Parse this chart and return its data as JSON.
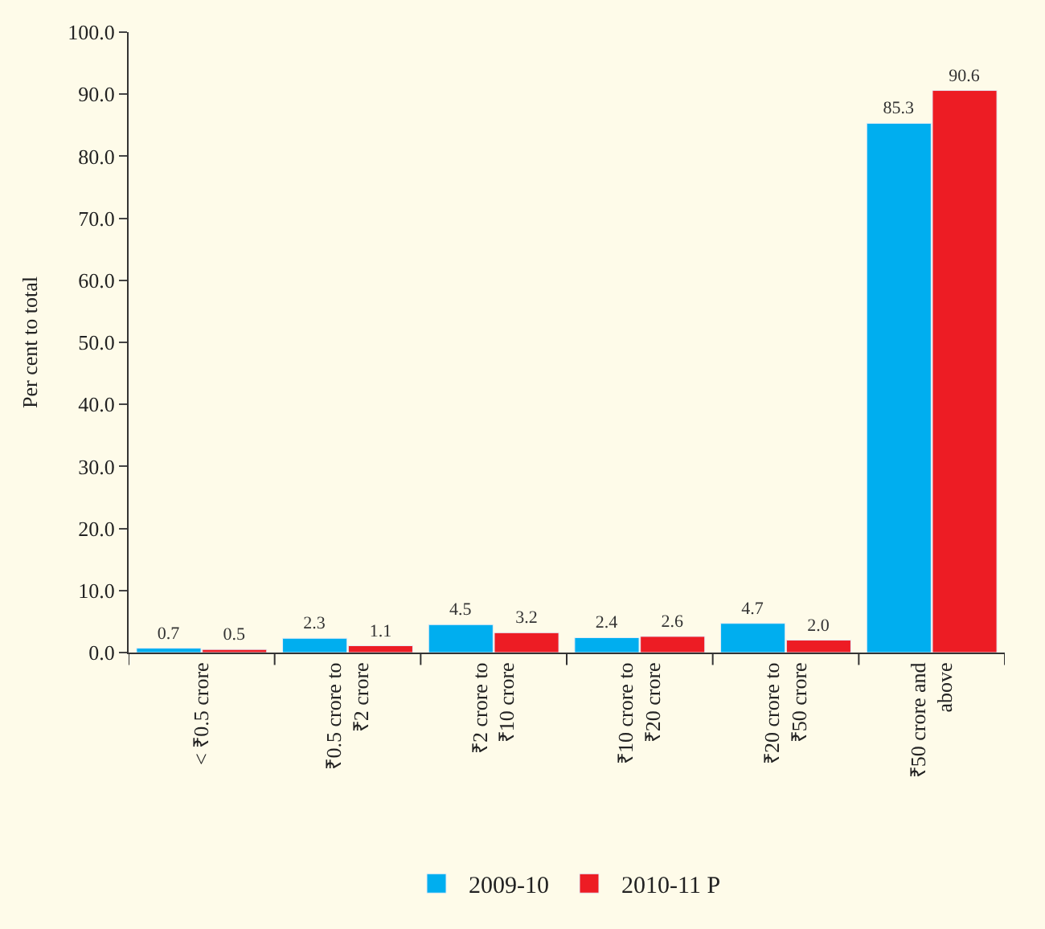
{
  "chart_data": {
    "type": "bar",
    "ylabel": "Per cent to total",
    "categories": [
      "< ₹0.5 crore",
      "₹0.5 crore to ₹2 crore",
      "₹2 crore to ₹10 crore",
      "₹10 crore to ₹20 crore",
      "₹20 crore to ₹50 crore",
      "₹50 crore and above"
    ],
    "series": [
      {
        "name": "2009-10",
        "color": "#00aeef",
        "values": [
          0.7,
          2.3,
          4.5,
          2.4,
          4.7,
          85.3
        ],
        "value_labels": [
          "0.7",
          "2.3",
          "4.5",
          "2.4",
          "4.7",
          "85.3"
        ]
      },
      {
        "name": "2010-11 P",
        "color": "#ed1c24",
        "values": [
          0.5,
          1.1,
          3.2,
          2.6,
          2.0,
          90.6
        ],
        "value_labels": [
          "0.5",
          "1.1",
          "3.2",
          "2.6",
          "2.0",
          "90.6"
        ]
      }
    ],
    "ylim": [
      0,
      100
    ],
    "yticks": [
      {
        "value": 0,
        "label": "0.0"
      },
      {
        "value": 10,
        "label": "10.0"
      },
      {
        "value": 20,
        "label": "20.0"
      },
      {
        "value": 30,
        "label": "30.0"
      },
      {
        "value": 40,
        "label": "40.0"
      },
      {
        "value": 50,
        "label": "50.0"
      },
      {
        "value": 60,
        "label": "60.0"
      },
      {
        "value": 70,
        "label": "70.0"
      },
      {
        "value": 80,
        "label": "80.0"
      },
      {
        "value": 90,
        "label": "90.0"
      },
      {
        "value": 100,
        "label": "100.0"
      }
    ],
    "grid": false,
    "legend": "bottom"
  }
}
